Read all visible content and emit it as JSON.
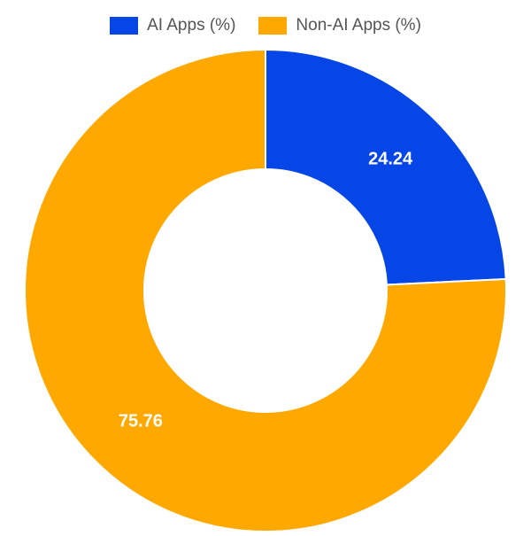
{
  "chart_data": {
    "type": "pie",
    "variant": "donut",
    "title": "",
    "legend_position": "top",
    "series": [
      {
        "name": "AI Apps (%)",
        "value": 24.24,
        "label": "24.24",
        "color": "#0645E6"
      },
      {
        "name": "Non-AI Apps (%)",
        "value": 75.76,
        "label": "75.76",
        "color": "#FFA800"
      }
    ]
  }
}
